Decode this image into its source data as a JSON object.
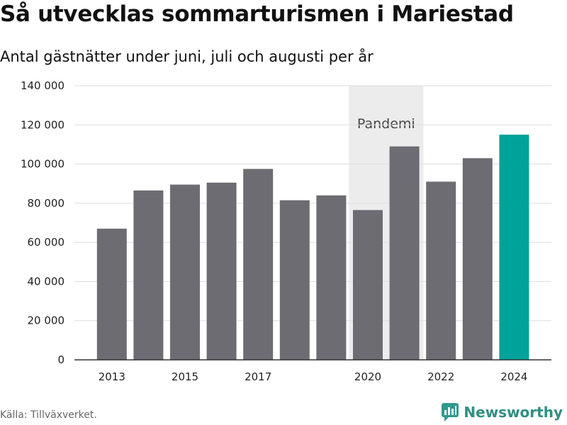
{
  "title": "Så utvecklas sommarturismen i Mariestad",
  "subtitle": "Antal gästnätter under juni, juli och augusti per år",
  "source": "Källa: Tillväxverket.",
  "brand": {
    "name": "Newsworthy",
    "icon": "newsworthy-logo-icon",
    "color": "#2f9a8e"
  },
  "colors": {
    "bar": "#6d6c72",
    "highlight": "#00a39a",
    "shade": "#ececec",
    "grid": "#dddddd"
  },
  "chart_data": {
    "type": "bar",
    "title": "Så utvecklas sommarturismen i Mariestad",
    "subtitle": "Antal gästnätter under juni, juli och augusti per år",
    "xlabel": "",
    "ylabel": "",
    "categories": [
      "2013",
      "2014",
      "2015",
      "2016",
      "2017",
      "2018",
      "2019",
      "2020",
      "2021",
      "2022",
      "2023",
      "2024"
    ],
    "values": [
      67000,
      86500,
      89500,
      90500,
      97500,
      81500,
      84000,
      76500,
      109000,
      91000,
      103000,
      115000
    ],
    "highlight_category": "2024",
    "ylim": [
      0,
      140000
    ],
    "yticks": [
      0,
      20000,
      40000,
      60000,
      80000,
      100000,
      120000,
      140000
    ],
    "ytick_labels": [
      "0",
      "20 000",
      "40 000",
      "60 000",
      "80 000",
      "100 000",
      "120 000",
      "140 000"
    ],
    "xtick_labels": [
      "2013",
      "2015",
      "2017",
      "2020",
      "2022",
      "2024"
    ],
    "grid": true,
    "shaded_region": {
      "label": "Pandemi",
      "from": "2020",
      "to": "2021"
    }
  }
}
